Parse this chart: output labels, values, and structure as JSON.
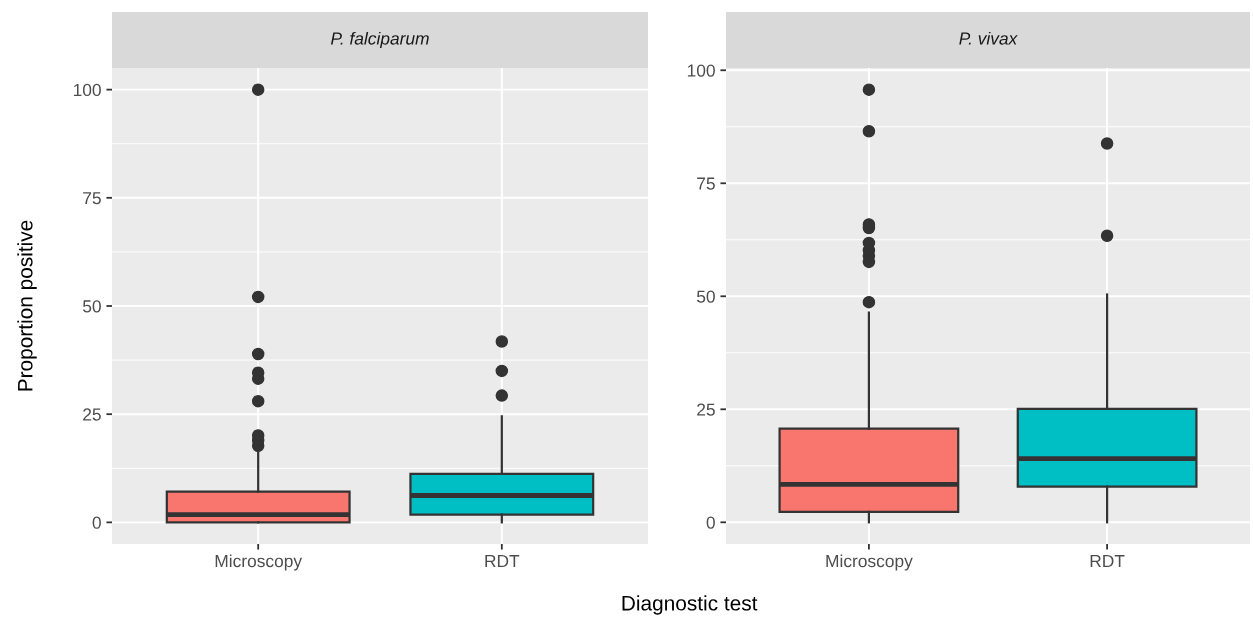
{
  "chart_data": [
    {
      "type": "box",
      "title": "P. falciparum",
      "ylabel": "Proportion positive",
      "xlabel": "Diagnostic test",
      "categories": [
        "Microscopy",
        "RDT"
      ],
      "colors": [
        "#f8766d",
        "#00bfc4"
      ],
      "boxes": [
        {
          "low": 0,
          "q1": 0,
          "median": 1.8,
          "q3": 7.1,
          "high": 16.3,
          "outliers": [
            17.7,
            19.0,
            20.1,
            28.0,
            33.2,
            34.6,
            38.9,
            52.1,
            100
          ]
        },
        {
          "low": 0,
          "q1": 1.8,
          "median": 6.2,
          "q3": 11.2,
          "high": 24.5,
          "outliers": [
            29.3,
            35.0,
            41.8
          ]
        }
      ],
      "ylim": [
        -5,
        105
      ],
      "yticks": [
        0,
        25,
        50,
        75,
        100
      ],
      "grid": true
    },
    {
      "type": "box",
      "title": "P. vivax",
      "categories": [
        "Microscopy",
        "RDT"
      ],
      "colors": [
        "#f8766d",
        "#00bfc4"
      ],
      "boxes": [
        {
          "low": 0,
          "q1": 2.3,
          "median": 8.4,
          "q3": 20.7,
          "high": 46.4,
          "outliers": [
            48.7,
            57.6,
            58.9,
            60.2,
            61.8,
            65.1,
            65.9,
            86.5,
            95.7
          ]
        },
        {
          "low": 0,
          "q1": 7.9,
          "median": 14.1,
          "q3": 25.1,
          "high": 50.4,
          "outliers": [
            63.4,
            83.8
          ]
        }
      ],
      "ylim": [
        -4.8,
        100.5
      ],
      "yticks": [
        0,
        25,
        50,
        75,
        100
      ],
      "grid": true
    }
  ]
}
